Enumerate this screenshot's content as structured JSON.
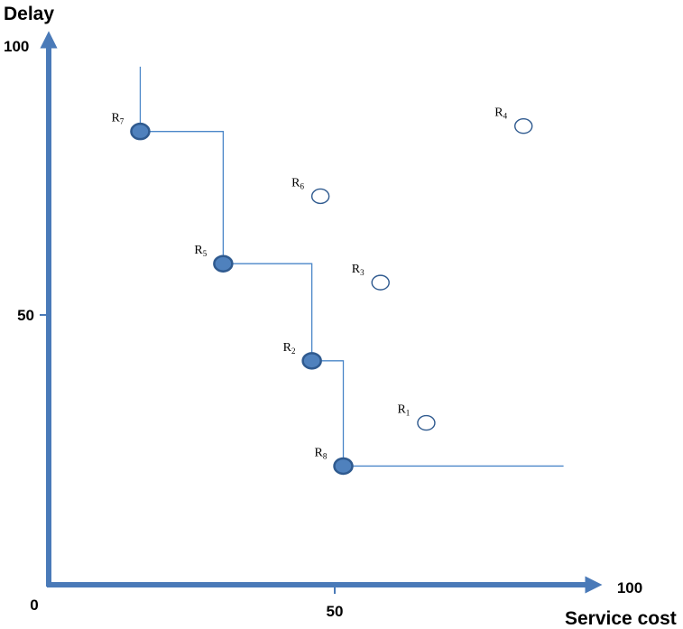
{
  "chart_data": {
    "type": "scatter",
    "title": "",
    "xlabel": "Service cost",
    "ylabel": "Delay",
    "xlim": [
      0,
      100
    ],
    "ylim": [
      0,
      100
    ],
    "xticks": [
      {
        "value": 0,
        "label": "0"
      },
      {
        "value": 50,
        "label": "50"
      },
      {
        "value": 100,
        "label": "100"
      }
    ],
    "yticks": [
      {
        "value": 50,
        "label": "50"
      },
      {
        "value": 100,
        "label": "100"
      }
    ],
    "grid": false,
    "colors": {
      "axis": "#4a7ab8",
      "pareto_fill": "#4f81bd",
      "pareto_stroke": "#2f5a8f",
      "frontier_line": "#4a86c8",
      "open_stroke": "#2f5a8f"
    },
    "points": [
      {
        "id": "R1",
        "base": "R",
        "sub": "1",
        "x": 66,
        "y": 30,
        "pareto": false
      },
      {
        "id": "R2",
        "base": "R",
        "sub": "2",
        "x": 46,
        "y": 41.5,
        "pareto": true
      },
      {
        "id": "R3",
        "base": "R",
        "sub": "3",
        "x": 58,
        "y": 56,
        "pareto": false
      },
      {
        "id": "R4",
        "base": "R",
        "sub": "4",
        "x": 83,
        "y": 85,
        "pareto": false
      },
      {
        "id": "R5",
        "base": "R",
        "sub": "5",
        "x": 30.5,
        "y": 59.5,
        "pareto": true
      },
      {
        "id": "R6",
        "base": "R",
        "sub": "6",
        "x": 47.5,
        "y": 72,
        "pareto": false
      },
      {
        "id": "R7",
        "base": "R",
        "sub": "7",
        "x": 16,
        "y": 84,
        "pareto": true
      },
      {
        "id": "R8",
        "base": "R",
        "sub": "8",
        "x": 51.5,
        "y": 22,
        "pareto": true
      }
    ],
    "frontier": {
      "start_y": 96,
      "end_x": 90
    }
  }
}
